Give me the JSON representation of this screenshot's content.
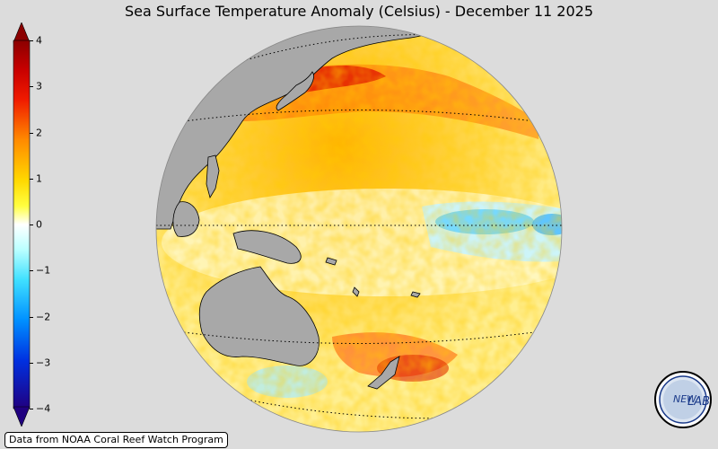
{
  "title": "Sea Surface Temperature Anomaly (Celsius) - December 11 2025",
  "colorbar": {
    "ticks": [
      {
        "value": 4,
        "label": "4"
      },
      {
        "value": 3,
        "label": "3"
      },
      {
        "value": 2,
        "label": "2"
      },
      {
        "value": 1,
        "label": "1"
      },
      {
        "value": 0,
        "label": "0"
      },
      {
        "value": -1,
        "label": "−1"
      },
      {
        "value": -2,
        "label": "−2"
      },
      {
        "value": -3,
        "label": "−3"
      },
      {
        "value": -4,
        "label": "−4"
      }
    ],
    "min": -4,
    "max": 4,
    "colors": {
      "dark_red": "#8b0000",
      "red": "#e60000",
      "orange": "#ff8c00",
      "yellow": "#ffff00",
      "white": "#ffffff",
      "cyan": "#7fffff",
      "blue": "#0050ff",
      "dark_blue": "#1a0080"
    }
  },
  "credit": "Data from NOAA Coral Reef Watch Program",
  "logo": {
    "text_left": "NEW",
    "text_right": "LAB"
  },
  "map_colors": {
    "land": "#a8a8a8",
    "ocean_warm": "#ffe680",
    "background": "#dcdcdc"
  }
}
